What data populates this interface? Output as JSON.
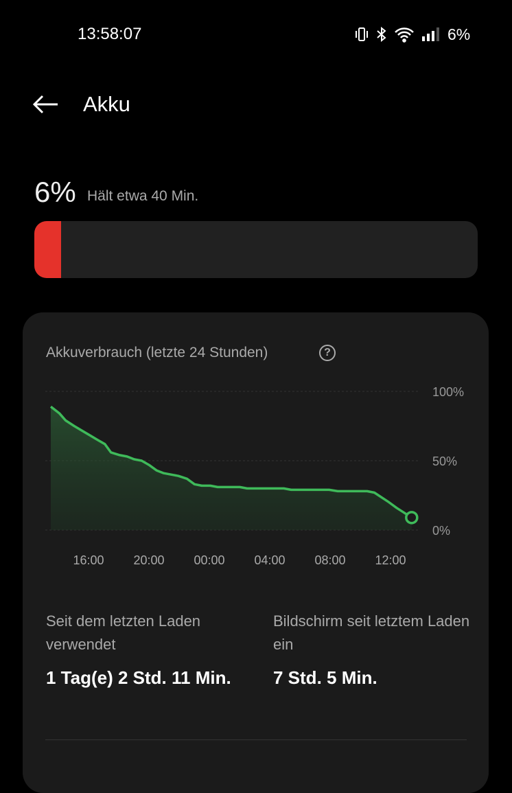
{
  "status_bar": {
    "time": "13:58:07",
    "battery": "6%",
    "icons": [
      "vibrate-icon",
      "bluetooth-icon",
      "wifi-icon",
      "signal-icon"
    ]
  },
  "header": {
    "title": "Akku",
    "back_icon": "arrow-left-icon"
  },
  "battery": {
    "percent_label": "6%",
    "level_percent": 6,
    "remaining": "Hält etwa 40 Min.",
    "fill_color": "#e5322b"
  },
  "usage_card": {
    "title": "Akkuverbrauch (letzte 24 Stunden)",
    "help_icon": "?",
    "stats": [
      {
        "label": "Seit dem letzten Laden verwendet",
        "value": "1 Tag(e) 2 Std. 11 Min."
      },
      {
        "label": "Bildschirm seit letztem Laden ein",
        "value": "7 Std. 5 Min."
      }
    ]
  },
  "chart_data": {
    "type": "area",
    "line_color": "#3fba5a",
    "y_ticks": [
      "100%",
      "50%",
      "0%"
    ],
    "ylim": [
      0,
      100
    ],
    "x_ticks": [
      "16:00",
      "20:00",
      "00:00",
      "04:00",
      "08:00",
      "12:00"
    ],
    "grid": true,
    "points": [
      [
        "13:30",
        89
      ],
      [
        "14:05",
        84
      ],
      [
        "14:29",
        79
      ],
      [
        "15:03",
        75
      ],
      [
        "16:36",
        65
      ],
      [
        "17:05",
        62
      ],
      [
        "17:29",
        56
      ],
      [
        "18:04",
        54
      ],
      [
        "18:33",
        53
      ],
      [
        "19:02",
        51
      ],
      [
        "19:31",
        50
      ],
      [
        "20:00",
        47
      ],
      [
        "20:30",
        43
      ],
      [
        "20:59",
        41
      ],
      [
        "21:57",
        39
      ],
      [
        "22:31",
        37
      ],
      [
        "23:01",
        33
      ],
      [
        "23:30",
        32
      ],
      [
        "00:04",
        32
      ],
      [
        "00:33",
        31
      ],
      [
        "02:01",
        31
      ],
      [
        "02:30",
        30
      ],
      [
        "04:56",
        30
      ],
      [
        "05:25",
        29
      ],
      [
        "07:56",
        29
      ],
      [
        "08:30",
        28
      ],
      [
        "10:27",
        28
      ],
      [
        "10:56",
        27
      ],
      [
        "11:54",
        20
      ],
      [
        "12:24",
        16
      ],
      [
        "13:24",
        9
      ]
    ]
  }
}
